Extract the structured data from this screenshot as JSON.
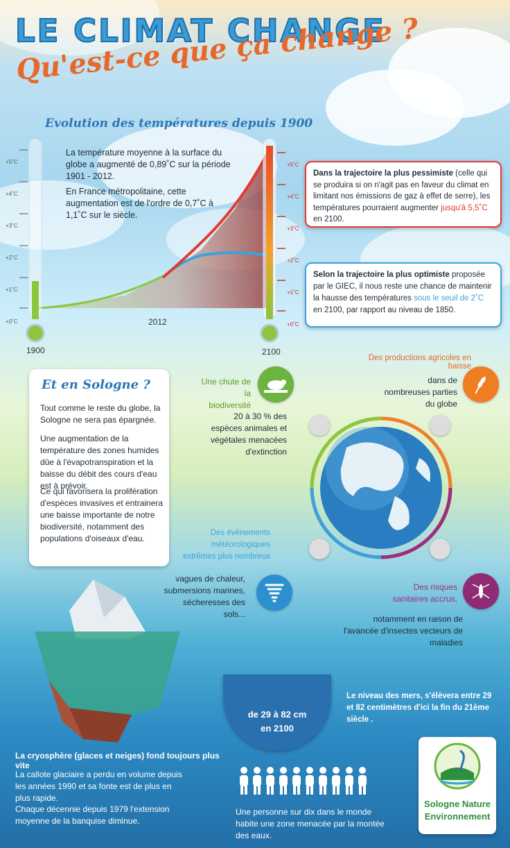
{
  "header": {
    "title": "LE CLIMAT CHANGE",
    "subtitle": "Qu'est-ce que ça change ?"
  },
  "temperature": {
    "title": "Evolution des températures depuis 1900",
    "text1": "La température moyenne à la surface du globe a augmenté de 0,89˚C sur la période 1901 - 2012.",
    "text2": "En France métropolitaine, cette augmentation est de l'ordre de 0,7˚C à 1,1˚C sur le siècle.",
    "scale": [
      "+5˚C",
      "+4˚C",
      "+3˚C",
      "+2˚C",
      "+1˚C",
      "+0˚C"
    ],
    "year_start": "1900",
    "year_mid": "2012",
    "year_end": "2100",
    "pessimist": {
      "bold": "Dans la trajectoire la plus pessimiste",
      "text": " (celle qui se produira si on n'agit pas en faveur du climat en limitant nos émissions de gaz à effet de serre), les températures pourraient augmenter ",
      "highlight": "jusqu'à 5,5˚C",
      "end": " en 2100."
    },
    "optimist": {
      "bold": "Selon la trajectoire la plus optimiste",
      "text": " proposée par le GIEC, il nous reste une chance de maintenir la hausse des températures ",
      "highlight": "sous le seuil de 2˚C",
      "end": " en 2100, par rapport au niveau de 1850."
    }
  },
  "sologne": {
    "title": "Et en Sologne ?",
    "p1": "Tout comme le reste du globe, la Sologne ne sera pas épargnée.",
    "p2": "Une augmentation de la température des zones humides dûe à l'évapotranspiration et la baisse du débit des cours d'eau est à prévoir.",
    "p3": "Ce qui favorisera la prolifération d'espèces invasives et entrainera une baisse importante de notre biodiversité, notamment des populations d'oiseaux d'eau."
  },
  "impacts": {
    "biodiv_title": "Une chute de la biodiversité",
    "biodiv_text": "20 à 30 % des espèces animales et végétales menacées d'extinction",
    "agri_title": "Des productions agricoles en baisse",
    "agri_text": "dans de nombreuses parties du globe",
    "meteo_title": "Des événements météorologiques extrêmes plus nombreux",
    "meteo_text": "vagues de chaleur, submersions marines, sécheresses des sols...",
    "sante_title": "Des risques sanitaires accrus,",
    "sante_text": "notamment en raison de l'avancée d'insectes vecteurs de maladies"
  },
  "ocean": {
    "sea_text": "Le niveau des mers, s'élèvera entre 29 et 82 centimètres d'ici la fin du 21ème siècle .",
    "drop_line1": "de 29 à 82 cm",
    "drop_line2": "en 2100",
    "cryo_title": "La cryosphère (glaces et neiges) fond toujours plus vite",
    "cryo_p1": "La callote glaciaire a perdu en volume depuis les années 1990 et sa fonte est de plus en plus rapide.",
    "cryo_p2": "Chaque décennie depuis 1979 l'extension moyenne de la banquise diminue.",
    "people_text": "Une personne sur dix dans le monde habite une zone menacée par la montée des eaux."
  },
  "logo": {
    "line1": "Sologne Nature",
    "line2": "Environnement"
  }
}
